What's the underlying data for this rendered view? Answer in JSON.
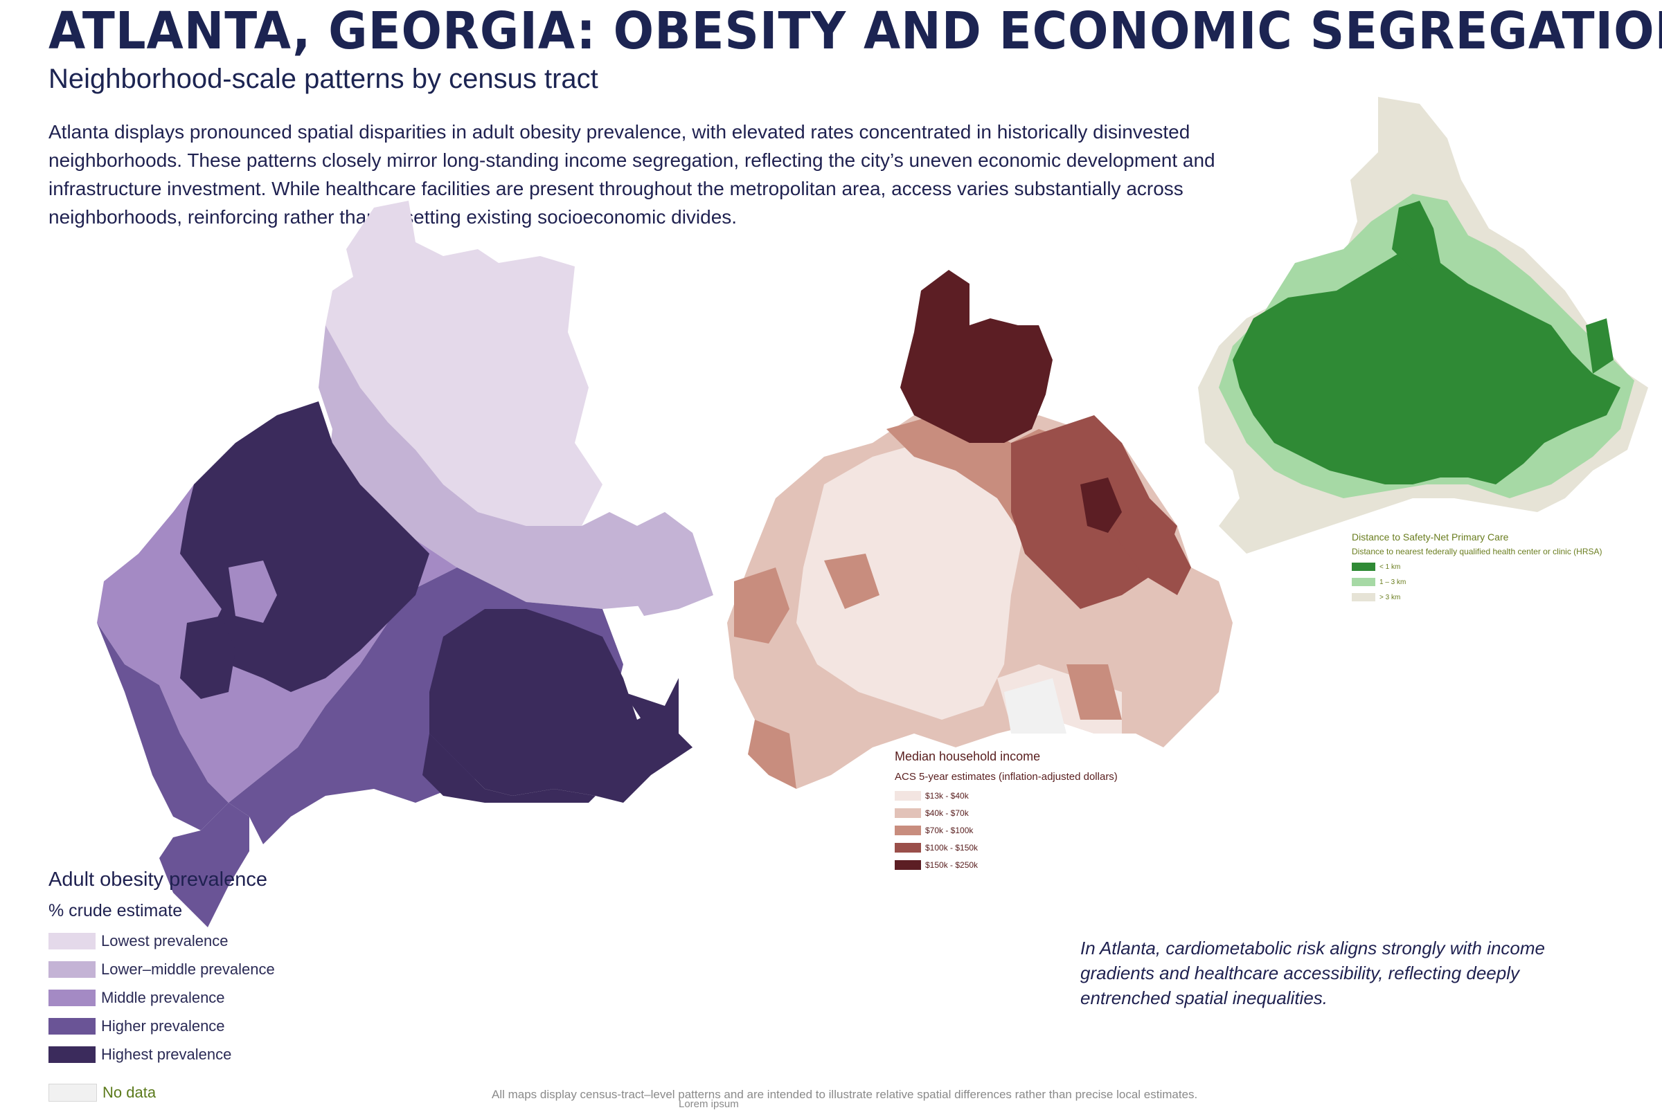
{
  "header": {
    "title": "ATLANTA, GEORGIA: OBESITY AND ECONOMIC SEGREGATION",
    "subtitle": "Neighborhood-scale patterns by census tract",
    "intro": "Atlanta displays pronounced spatial disparities in adult obesity prevalence, with elevated rates concentrated in historically disinvested neighborhoods. These patterns closely mirror long-standing income segregation, reflecting the city’s uneven economic development and infrastructure investment. While healthcare facilities are present throughout the metropolitan area, access varies substantially across neighborhoods, reinforcing rather than offsetting existing socioeconomic divides."
  },
  "obesity_legend": {
    "title": "Adult obesity prevalence",
    "subtitle": "% crude estimate",
    "items": [
      {
        "label": "Lowest prevalence",
        "color": "#e4d9ea"
      },
      {
        "label": "Lower–middle prevalence",
        "color": "#c4b3d5"
      },
      {
        "label": "Middle prevalence",
        "color": "#a48ac4"
      },
      {
        "label": "Higher prevalence",
        "color": "#6a5496"
      },
      {
        "label": "Highest prevalence",
        "color": "#3b2b5c"
      }
    ],
    "no_data": {
      "label": "No data",
      "color": "#f1f1f1"
    }
  },
  "income_legend": {
    "title": "Median household income",
    "subtitle": "ACS 5-year estimates (inflation-adjusted dollars)",
    "items": [
      {
        "label": "$13k - $40k",
        "color": "#f3e5e1"
      },
      {
        "label": "$40k - $70k",
        "color": "#e2c2b8"
      },
      {
        "label": "$70k - $100k",
        "color": "#c88d7e"
      },
      {
        "label": "$100k - $150k",
        "color": "#9a4f4a"
      },
      {
        "label": "$150k - $250k",
        "color": "#5c1e24"
      }
    ]
  },
  "access_legend": {
    "title": "Distance to Safety-Net Primary Care",
    "subtitle": "Distance to nearest federally qualified health center or clinic (HRSA)",
    "items": [
      {
        "label": "< 1 km",
        "color": "#2f8a35"
      },
      {
        "label": "1 – 3 km",
        "color": "#a6d9a5"
      },
      {
        "label": "> 3 km",
        "color": "#e6e3d6"
      }
    ]
  },
  "caption": "In Atlanta, cardiometabolic risk aligns strongly with income gradients and healthcare accessibility, reflecting deeply entrenched spatial inequalities.",
  "footnote": "All maps display census-tract–level patterns and are intended to illustrate relative spatial differences rather than precise local estimates.",
  "footer2": "Lorem ipsum"
}
